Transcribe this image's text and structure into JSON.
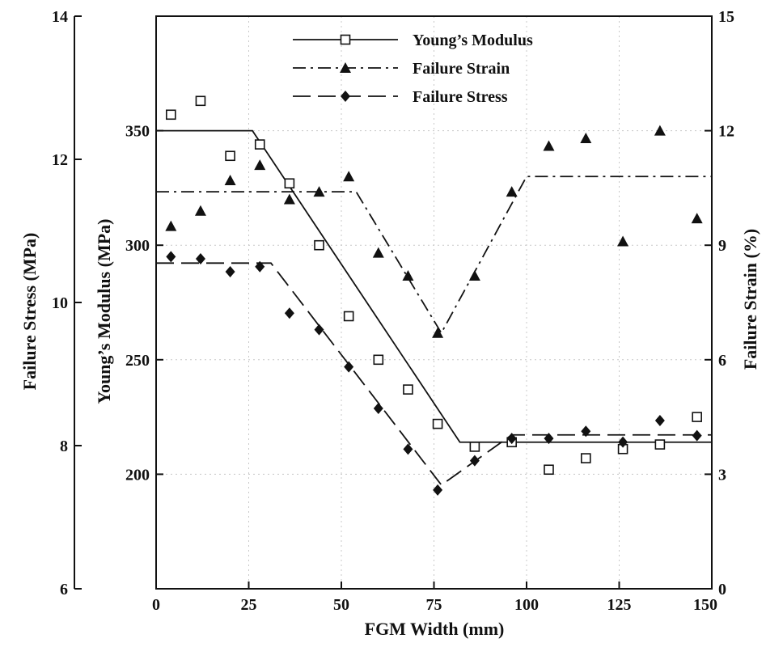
{
  "chart_data": {
    "type": "scatter",
    "xlabel": "FGM Width (mm)",
    "xlim": [
      0,
      150
    ],
    "x_ticks": [
      "0",
      "25",
      "50",
      "75",
      "100",
      "125",
      "150"
    ],
    "grid": true,
    "legend_position": "top-center",
    "axes": {
      "failure_stress": {
        "label": "Failure Stress (MPa)",
        "range": [
          6,
          14
        ],
        "ticks": [
          "6",
          "8",
          "10",
          "12",
          "14"
        ]
      },
      "youngs_modulus": {
        "label": "Young’s Modulus (MPa)",
        "range": [
          150,
          400
        ],
        "ticks": [
          "200",
          "250",
          "300",
          "350"
        ]
      },
      "failure_strain": {
        "label": "Failure Strain (%)",
        "range": [
          0,
          15
        ],
        "ticks": [
          "0",
          "3",
          "6",
          "9",
          "12",
          "15"
        ]
      }
    },
    "series": [
      {
        "name": "Young’s Modulus",
        "axis": "youngs_modulus",
        "marker": "open-square",
        "line_style": "solid",
        "points": [
          [
            4,
            357
          ],
          [
            12,
            363
          ],
          [
            20,
            339
          ],
          [
            28,
            344
          ],
          [
            36,
            327
          ],
          [
            44,
            300
          ],
          [
            52,
            269
          ],
          [
            60,
            250
          ],
          [
            68,
            237
          ],
          [
            76,
            222
          ],
          [
            86,
            212
          ],
          [
            96,
            214
          ],
          [
            106,
            202
          ],
          [
            116,
            207
          ],
          [
            126,
            211
          ],
          [
            136,
            213
          ],
          [
            146,
            225
          ]
        ],
        "fit": [
          [
            0,
            350
          ],
          [
            26,
            350
          ],
          [
            82,
            214
          ],
          [
            150,
            214
          ]
        ]
      },
      {
        "name": "Failure Strain",
        "axis": "failure_strain",
        "marker": "filled-triangle",
        "line_style": "dash-dot",
        "points": [
          [
            4,
            9.5
          ],
          [
            12,
            9.9
          ],
          [
            20,
            10.7
          ],
          [
            28,
            11.1
          ],
          [
            36,
            10.2
          ],
          [
            44,
            10.4
          ],
          [
            52,
            10.8
          ],
          [
            60,
            8.8
          ],
          [
            68,
            8.2
          ],
          [
            76,
            6.7
          ],
          [
            86,
            8.2
          ],
          [
            96,
            10.4
          ],
          [
            106,
            11.6
          ],
          [
            116,
            11.8
          ],
          [
            126,
            9.1
          ],
          [
            136,
            12.0
          ],
          [
            146,
            9.7
          ]
        ],
        "fit": [
          [
            0,
            10.4
          ],
          [
            54,
            10.4
          ],
          [
            77,
            6.7
          ],
          [
            100,
            10.8
          ],
          [
            150,
            10.8
          ]
        ]
      },
      {
        "name": "Failure Stress",
        "axis": "failure_stress",
        "marker": "filled-diamond",
        "line_style": "long-dash",
        "points": [
          [
            4,
            10.64
          ],
          [
            12,
            10.61
          ],
          [
            20,
            10.43
          ],
          [
            28,
            10.5
          ],
          [
            36,
            9.85
          ],
          [
            44,
            9.62
          ],
          [
            52,
            9.1
          ],
          [
            60,
            8.52
          ],
          [
            68,
            7.95
          ],
          [
            76,
            7.38
          ],
          [
            86,
            7.79
          ],
          [
            96,
            8.1
          ],
          [
            106,
            8.1
          ],
          [
            116,
            8.2
          ],
          [
            126,
            8.05
          ],
          [
            136,
            8.35
          ],
          [
            146,
            8.14
          ]
        ],
        "fit": [
          [
            0,
            10.55
          ],
          [
            31,
            10.55
          ],
          [
            77,
            7.45
          ],
          [
            96,
            8.15
          ],
          [
            150,
            8.15
          ]
        ]
      }
    ]
  }
}
